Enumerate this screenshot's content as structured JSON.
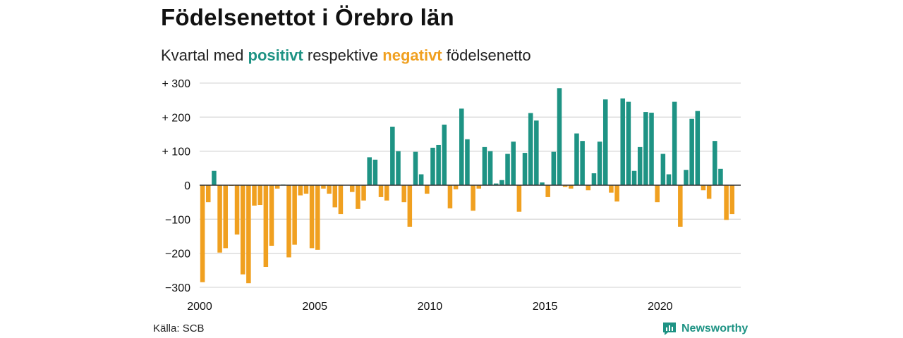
{
  "title": "Födelsenettot i Örebro län",
  "subtitle": {
    "prefix": "Kvartal med",
    "positive_word": "positivt",
    "middle": "respektive",
    "negative_word": "negativt",
    "suffix": "födelsenetto"
  },
  "source": "Källa: SCB",
  "brand": {
    "name": "Newsworthy",
    "icon": "newsworthy-logo-icon"
  },
  "colors": {
    "positive": "#1e9384",
    "negative": "#f0a020",
    "grid": "#d9d9d9",
    "zero": "#333333"
  },
  "chart_data": {
    "type": "bar",
    "title": "Födelsenettot i Örebro län",
    "subtitle": "Kvartal med positivt respektive negativt födelsenetto",
    "x_start": 2000,
    "x_step": 0.25,
    "xlim": [
      2000,
      2023.5
    ],
    "ylim": [
      -300,
      300
    ],
    "yticks": [
      300,
      200,
      100,
      0,
      -100,
      -200,
      -300
    ],
    "ytick_labels": [
      "+ 300",
      "+ 200",
      "+ 100",
      "0",
      "−100",
      "−200",
      "−300"
    ],
    "xticks": [
      2000,
      2005,
      2010,
      2015,
      2020
    ],
    "xtick_labels": [
      "2000",
      "2005",
      "2010",
      "2015",
      "2020"
    ],
    "grid": true,
    "values": [
      -285,
      -50,
      42,
      -198,
      -185,
      -2,
      -145,
      -262,
      -288,
      -60,
      -58,
      -240,
      -178,
      -10,
      2,
      -212,
      -175,
      -30,
      -25,
      -185,
      -190,
      -10,
      -25,
      -65,
      -85,
      0,
      -20,
      -70,
      -45,
      82,
      75,
      -35,
      -45,
      172,
      100,
      -50,
      -122,
      98,
      32,
      -25,
      110,
      118,
      178,
      -68,
      -12,
      225,
      135,
      -75,
      -10,
      112,
      100,
      5,
      15,
      92,
      128,
      -78,
      95,
      212,
      190,
      8,
      -35,
      98,
      285,
      -5,
      -10,
      152,
      130,
      -15,
      35,
      128,
      252,
      -22,
      -48,
      255,
      245,
      42,
      112,
      215,
      213,
      -50,
      92,
      32,
      245,
      -122,
      45,
      195,
      218,
      -15,
      -40,
      130,
      48,
      -102,
      -85
    ]
  }
}
